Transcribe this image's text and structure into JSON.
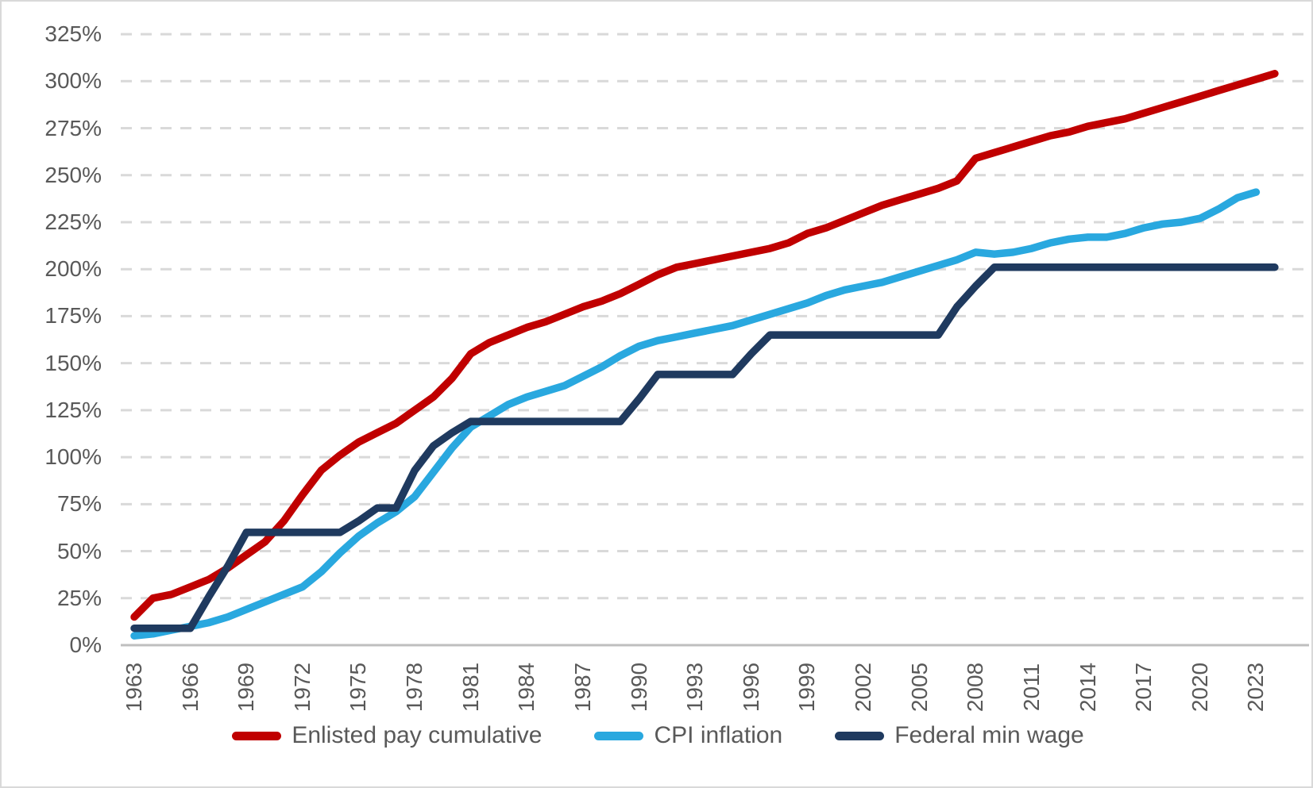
{
  "chart_data": {
    "type": "line",
    "title": "",
    "xlabel": "",
    "ylabel": "",
    "y_axis_format": "percent",
    "ylim": [
      0,
      325
    ],
    "y_tick_step": 25,
    "y_tick_labels": [
      "0%",
      "25%",
      "50%",
      "75%",
      "100%",
      "125%",
      "150%",
      "175%",
      "200%",
      "225%",
      "250%",
      "275%",
      "300%",
      "325%"
    ],
    "x_start_year": 1963,
    "x_end_year": 2024,
    "x_tick_years": [
      1963,
      1966,
      1969,
      1972,
      1975,
      1978,
      1981,
      1984,
      1987,
      1990,
      1993,
      1996,
      1999,
      2002,
      2005,
      2008,
      2011,
      2014,
      2017,
      2020,
      2023
    ],
    "grid": "horizontal-dashed",
    "legend_position": "bottom",
    "series": [
      {
        "name": "Enlisted pay cumulative",
        "color": "#C00000",
        "first_year": 1963,
        "values": [
          15,
          25,
          27,
          31,
          35,
          41,
          48,
          55,
          66,
          80,
          93,
          101,
          108,
          113,
          118,
          125,
          132,
          142,
          155,
          161,
          165,
          169,
          172,
          176,
          180,
          183,
          187,
          192,
          197,
          201,
          203,
          205,
          207,
          209,
          211,
          214,
          219,
          222,
          226,
          230,
          234,
          237,
          240,
          243,
          247,
          259,
          262,
          265,
          268,
          271,
          273,
          276,
          278,
          280,
          283,
          286,
          289,
          292,
          295,
          298,
          301,
          304
        ]
      },
      {
        "name": "CPI inflation",
        "color": "#29A8DF",
        "first_year": 1963,
        "values": [
          5,
          6,
          8,
          10,
          12,
          15,
          19,
          23,
          27,
          31,
          39,
          49,
          58,
          65,
          71,
          79,
          92,
          105,
          116,
          122,
          128,
          132,
          135,
          138,
          143,
          148,
          154,
          159,
          162,
          164,
          166,
          168,
          170,
          173,
          176,
          179,
          182,
          186,
          189,
          191,
          193,
          196,
          199,
          202,
          205,
          209,
          208,
          209,
          211,
          214,
          216,
          217,
          217,
          219,
          222,
          224,
          225,
          227,
          232,
          238,
          241
        ]
      },
      {
        "name": "Federal min wage",
        "color": "#1F3A5F",
        "first_year": 1963,
        "values": [
          9,
          9,
          9,
          9,
          26,
          42,
          60,
          60,
          60,
          60,
          60,
          60,
          66,
          73,
          73,
          93,
          106,
          113,
          119,
          119,
          119,
          119,
          119,
          119,
          119,
          119,
          119,
          131,
          144,
          144,
          144,
          144,
          144,
          155,
          165,
          165,
          165,
          165,
          165,
          165,
          165,
          165,
          165,
          165,
          180,
          191,
          201,
          201,
          201,
          201,
          201,
          201,
          201,
          201,
          201,
          201,
          201,
          201,
          201,
          201,
          201,
          201
        ]
      }
    ]
  },
  "colors": {
    "axis_text": "#595959",
    "gridline": "#D9D9D9",
    "axis_line": "#BFBFBF",
    "background": "#FFFFFF",
    "border": "#D9D9D9"
  }
}
